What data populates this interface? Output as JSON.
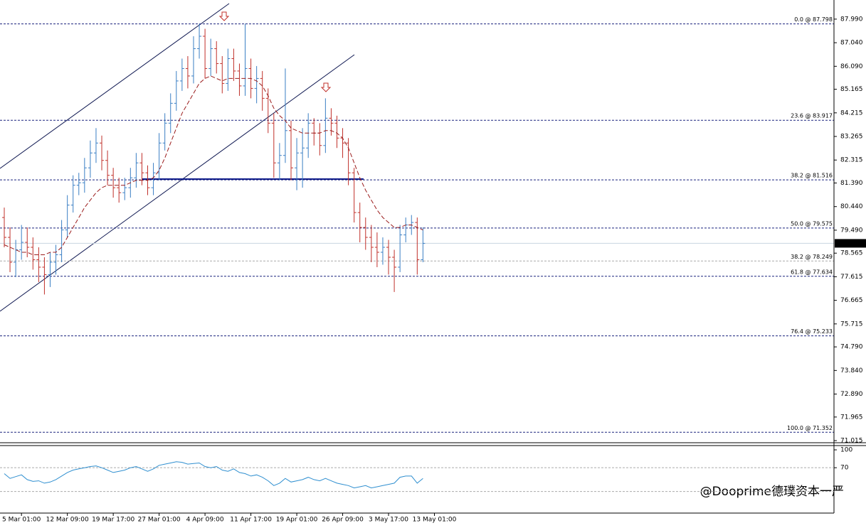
{
  "chart_data": {
    "type": "ohlc",
    "categories": [
      null,
      null,
      null,
      "5 Mar 01:00",
      null,
      null,
      null,
      null,
      null,
      null,
      null,
      "12 Mar 09:00",
      null,
      null,
      null,
      null,
      null,
      null,
      null,
      "19 Mar 17:00",
      null,
      null,
      null,
      null,
      null,
      null,
      null,
      "27 Mar 01:00",
      null,
      null,
      null,
      null,
      null,
      null,
      null,
      "4 Apr 09:00",
      null,
      null,
      null,
      null,
      null,
      null,
      null,
      "11 Apr 17:00",
      null,
      null,
      null,
      null,
      null,
      null,
      null,
      "19 Apr 01:00",
      null,
      null,
      null,
      null,
      null,
      null,
      null,
      "26 Apr 09:00",
      null,
      null,
      null,
      null,
      null,
      null,
      null,
      "3 May 17:00",
      null,
      null,
      null,
      null,
      null,
      null,
      null,
      "13 May 01:00"
    ],
    "open": [
      80.0,
      79.2,
      78.2,
      78.7,
      79.0,
      78.8,
      78.3,
      78.0,
      77.7,
      78.2,
      78.5,
      79.5,
      80.5,
      81.3,
      81.4,
      82.0,
      82.6,
      83.0,
      82.3,
      81.7,
      81.2,
      81.0,
      81.2,
      81.6,
      82.2,
      81.8,
      81.2,
      81.8,
      83.0,
      83.8,
      84.6,
      85.5,
      86.0,
      85.7,
      86.8,
      87.3,
      86.0,
      86.8,
      86.2,
      85.4,
      86.4,
      85.9,
      85.3,
      86.0,
      85.2,
      85.6,
      84.8,
      83.8,
      82.2,
      82.5,
      83.5,
      82.0,
      82.6,
      82.8,
      83.8,
      83.4,
      82.9,
      84.0,
      83.8,
      83.2,
      83.0,
      81.8,
      80.2,
      79.6,
      79.2,
      78.8,
      78.6,
      78.8,
      78.4,
      78.0,
      79.3,
      79.7,
      79.8,
      78.3,
      null,
      null
    ],
    "high": [
      80.4,
      79.6,
      79.1,
      79.7,
      79.6,
      79.2,
      78.8,
      78.4,
      78.6,
      78.9,
      79.9,
      80.9,
      81.7,
      81.8,
      82.4,
      83.1,
      83.6,
      83.3,
      82.7,
      82.0,
      81.6,
      81.6,
      82.0,
      82.6,
      82.6,
      82.1,
      82.2,
      83.4,
      84.2,
      85.0,
      85.9,
      86.4,
      86.5,
      87.3,
      87.8,
      87.6,
      87.2,
      87.1,
      86.5,
      86.8,
      86.8,
      86.2,
      87.8,
      86.4,
      86.1,
      85.9,
      85.2,
      84.2,
      83.0,
      86.0,
      83.9,
      83.2,
      83.6,
      84.2,
      84.0,
      83.8,
      84.8,
      84.4,
      84.1,
      83.6,
      83.2,
      82.0,
      80.6,
      80.0,
      79.7,
      79.4,
      79.2,
      79.1,
      78.7,
      79.7,
      80.0,
      80.1,
      80.0,
      79.6,
      null,
      null
    ],
    "low": [
      78.8,
      77.8,
      77.6,
      78.3,
      78.4,
      77.9,
      77.4,
      76.9,
      77.2,
      77.7,
      78.2,
      79.2,
      80.2,
      80.9,
      81.0,
      81.6,
      82.2,
      81.9,
      81.3,
      80.8,
      80.6,
      80.7,
      80.8,
      81.2,
      81.3,
      80.9,
      80.9,
      81.5,
      82.7,
      83.4,
      84.3,
      85.1,
      85.2,
      85.4,
      86.4,
      85.6,
      85.7,
      85.8,
      85.0,
      85.1,
      85.5,
      84.9,
      84.9,
      84.8,
      84.6,
      84.3,
      83.4,
      81.6,
      81.5,
      82.2,
      81.5,
      81.1,
      81.2,
      82.4,
      82.9,
      82.5,
      82.6,
      83.3,
      82.8,
      82.4,
      81.3,
      79.8,
      79.0,
      78.7,
      78.2,
      78.0,
      78.1,
      77.7,
      77.0,
      77.8,
      79.0,
      79.3,
      77.7,
      78.2,
      null,
      null
    ],
    "close": [
      79.2,
      78.2,
      78.7,
      79.0,
      78.8,
      78.3,
      78.0,
      77.7,
      78.2,
      78.5,
      79.5,
      80.5,
      81.3,
      81.4,
      82.0,
      82.6,
      83.0,
      82.3,
      81.7,
      81.2,
      81.0,
      81.2,
      81.6,
      82.2,
      81.8,
      81.2,
      81.8,
      83.0,
      83.8,
      84.6,
      85.5,
      86.0,
      85.7,
      86.8,
      87.3,
      86.0,
      86.8,
      86.2,
      85.4,
      86.4,
      85.9,
      85.3,
      86.0,
      85.2,
      85.6,
      84.8,
      83.8,
      82.2,
      82.5,
      83.5,
      82.0,
      82.6,
      82.8,
      83.8,
      83.4,
      82.9,
      84.0,
      83.8,
      83.2,
      83.0,
      81.8,
      80.2,
      79.6,
      79.2,
      78.8,
      78.6,
      78.8,
      78.4,
      78.0,
      79.3,
      79.7,
      79.8,
      78.3,
      78.96,
      null,
      null
    ],
    "up_color": "#3a7fc4",
    "down_color": "#c0302a",
    "moving_average": {
      "color": "#9b1c1c",
      "values": [
        78.9,
        78.8,
        78.7,
        78.6,
        78.6,
        78.5,
        78.5,
        78.5,
        78.6,
        78.6,
        78.8,
        79.2,
        79.6,
        80.0,
        80.4,
        80.7,
        81.0,
        81.2,
        81.3,
        81.3,
        81.3,
        81.3,
        81.4,
        81.5,
        81.5,
        81.5,
        81.6,
        81.9,
        82.4,
        83.0,
        83.6,
        84.2,
        84.6,
        85.0,
        85.4,
        85.6,
        85.7,
        85.6,
        85.5,
        85.6,
        85.6,
        85.6,
        85.6,
        85.6,
        85.5,
        85.3,
        84.9,
        84.4,
        84.1,
        83.9,
        83.6,
        83.5,
        83.4,
        83.4,
        83.4,
        83.4,
        83.5,
        83.5,
        83.4,
        83.2,
        82.8,
        82.2,
        81.6,
        81.1,
        80.7,
        80.3,
        80.0,
        79.8,
        79.6,
        79.6,
        79.7,
        79.7,
        79.6,
        79.5,
        null,
        null
      ]
    },
    "ylim": [
      70.93,
      88.76
    ],
    "yticks": [
      {
        "value": 87.99,
        "label": "87.990"
      },
      {
        "value": 87.04,
        "label": "87.040"
      },
      {
        "value": 86.09,
        "label": "86.090"
      },
      {
        "value": 85.165,
        "label": "85.165"
      },
      {
        "value": 84.215,
        "label": "84.215"
      },
      {
        "value": 83.265,
        "label": "83.265"
      },
      {
        "value": 82.315,
        "label": "82.315"
      },
      {
        "value": 81.39,
        "label": "81.390"
      },
      {
        "value": 80.44,
        "label": "80.440"
      },
      {
        "value": 79.49,
        "label": "79.490"
      },
      {
        "value": 78.565,
        "label": "78.565"
      },
      {
        "value": 77.615,
        "label": "77.615"
      },
      {
        "value": 76.665,
        "label": "76.665"
      },
      {
        "value": 75.715,
        "label": "75.715"
      },
      {
        "value": 74.79,
        "label": "74.790"
      },
      {
        "value": 73.84,
        "label": "73.840"
      },
      {
        "value": 72.89,
        "label": "72.890"
      },
      {
        "value": 71.965,
        "label": "71.965"
      },
      {
        "value": 71.015,
        "label": "71.015"
      }
    ],
    "fib_levels": [
      {
        "value": 87.798,
        "label": "0.0 @ 87.798",
        "color": "#1a237e"
      },
      {
        "value": 83.917,
        "label": "23.6 @ 83.917",
        "color": "#1a237e"
      },
      {
        "value": 81.516,
        "label": "38.2 @ 81.516",
        "color": "#1a237e"
      },
      {
        "value": 79.575,
        "label": "50.0 @ 79.575",
        "color": "#1a237e"
      },
      {
        "value": 78.249,
        "label": "38.2 @ 78.249",
        "color": "#aaaaaa"
      },
      {
        "value": 77.634,
        "label": "61.8 @ 77.634",
        "color": "#1a237e"
      },
      {
        "value": 75.233,
        "label": "76.4 @ 75.233",
        "color": "#1a237e"
      },
      {
        "value": 71.352,
        "label": "100.0 @ 71.352",
        "color": "#1a237e"
      }
    ],
    "last_price": {
      "value": 78.96,
      "label": "78.960"
    },
    "oscillator": {
      "color": "#2f8fd0",
      "ylim": [
        -5,
        106
      ],
      "yticks": [
        100,
        70
      ],
      "levels": [
        70,
        30
      ],
      "values": [
        60,
        52,
        55,
        58,
        50,
        47,
        48,
        44,
        46,
        50,
        56,
        62,
        66,
        68,
        70,
        72,
        73,
        70,
        66,
        62,
        64,
        66,
        70,
        72,
        68,
        64,
        68,
        74,
        76,
        78,
        80,
        79,
        76,
        77,
        78,
        72,
        70,
        72,
        66,
        64,
        68,
        62,
        60,
        56,
        58,
        54,
        48,
        40,
        44,
        52,
        46,
        48,
        50,
        54,
        50,
        48,
        52,
        48,
        44,
        42,
        40,
        36,
        38,
        40,
        36,
        38,
        40,
        42,
        44,
        54,
        56,
        56,
        44,
        52,
        null,
        null
      ]
    },
    "watermark": "@Dooprime德璞资本一严"
  }
}
